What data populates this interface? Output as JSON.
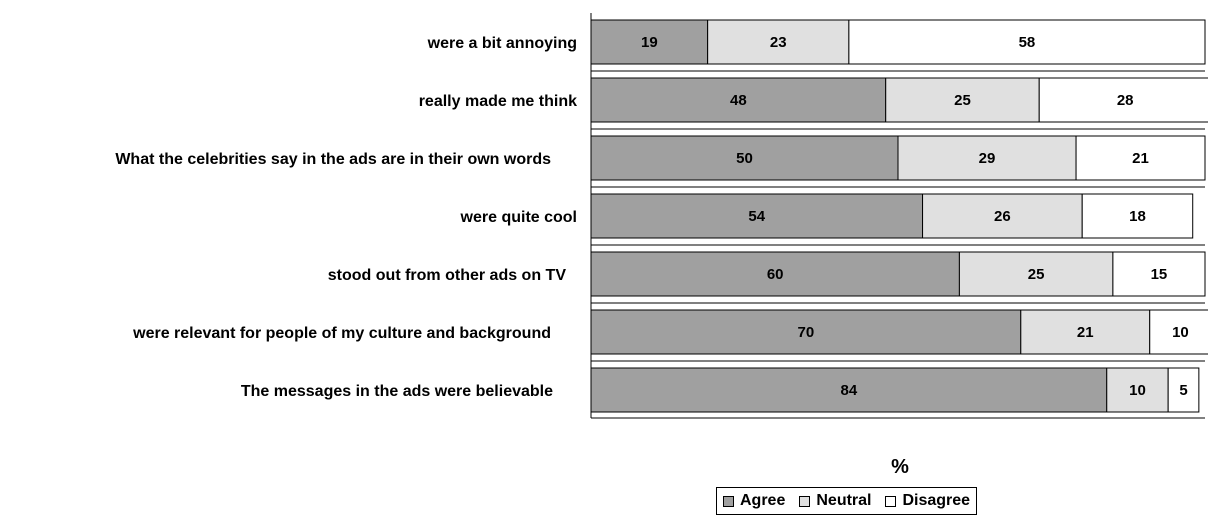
{
  "chart_data": {
    "type": "bar",
    "orientation": "horizontal",
    "stacked": true,
    "categories": [
      "were a bit annoying",
      "really made me think",
      "What the celebrities say in the ads are in their own words",
      "were quite cool",
      "stood out from other ads on TV",
      "were relevant for people of my culture and background",
      "The messages in the ads were believable"
    ],
    "series": [
      {
        "name": "Agree",
        "color": "#a0a0a0",
        "values": [
          19,
          48,
          50,
          54,
          60,
          70,
          84
        ]
      },
      {
        "name": "Neutral",
        "color": "#e0e0e0",
        "values": [
          23,
          25,
          29,
          26,
          25,
          21,
          10
        ]
      },
      {
        "name": "Disagree",
        "color": "#ffffff",
        "values": [
          58,
          28,
          21,
          18,
          15,
          10,
          5
        ]
      }
    ],
    "xlabel": "%",
    "xlim": [
      0,
      100
    ],
    "legend_position": "bottom",
    "grid": false
  }
}
